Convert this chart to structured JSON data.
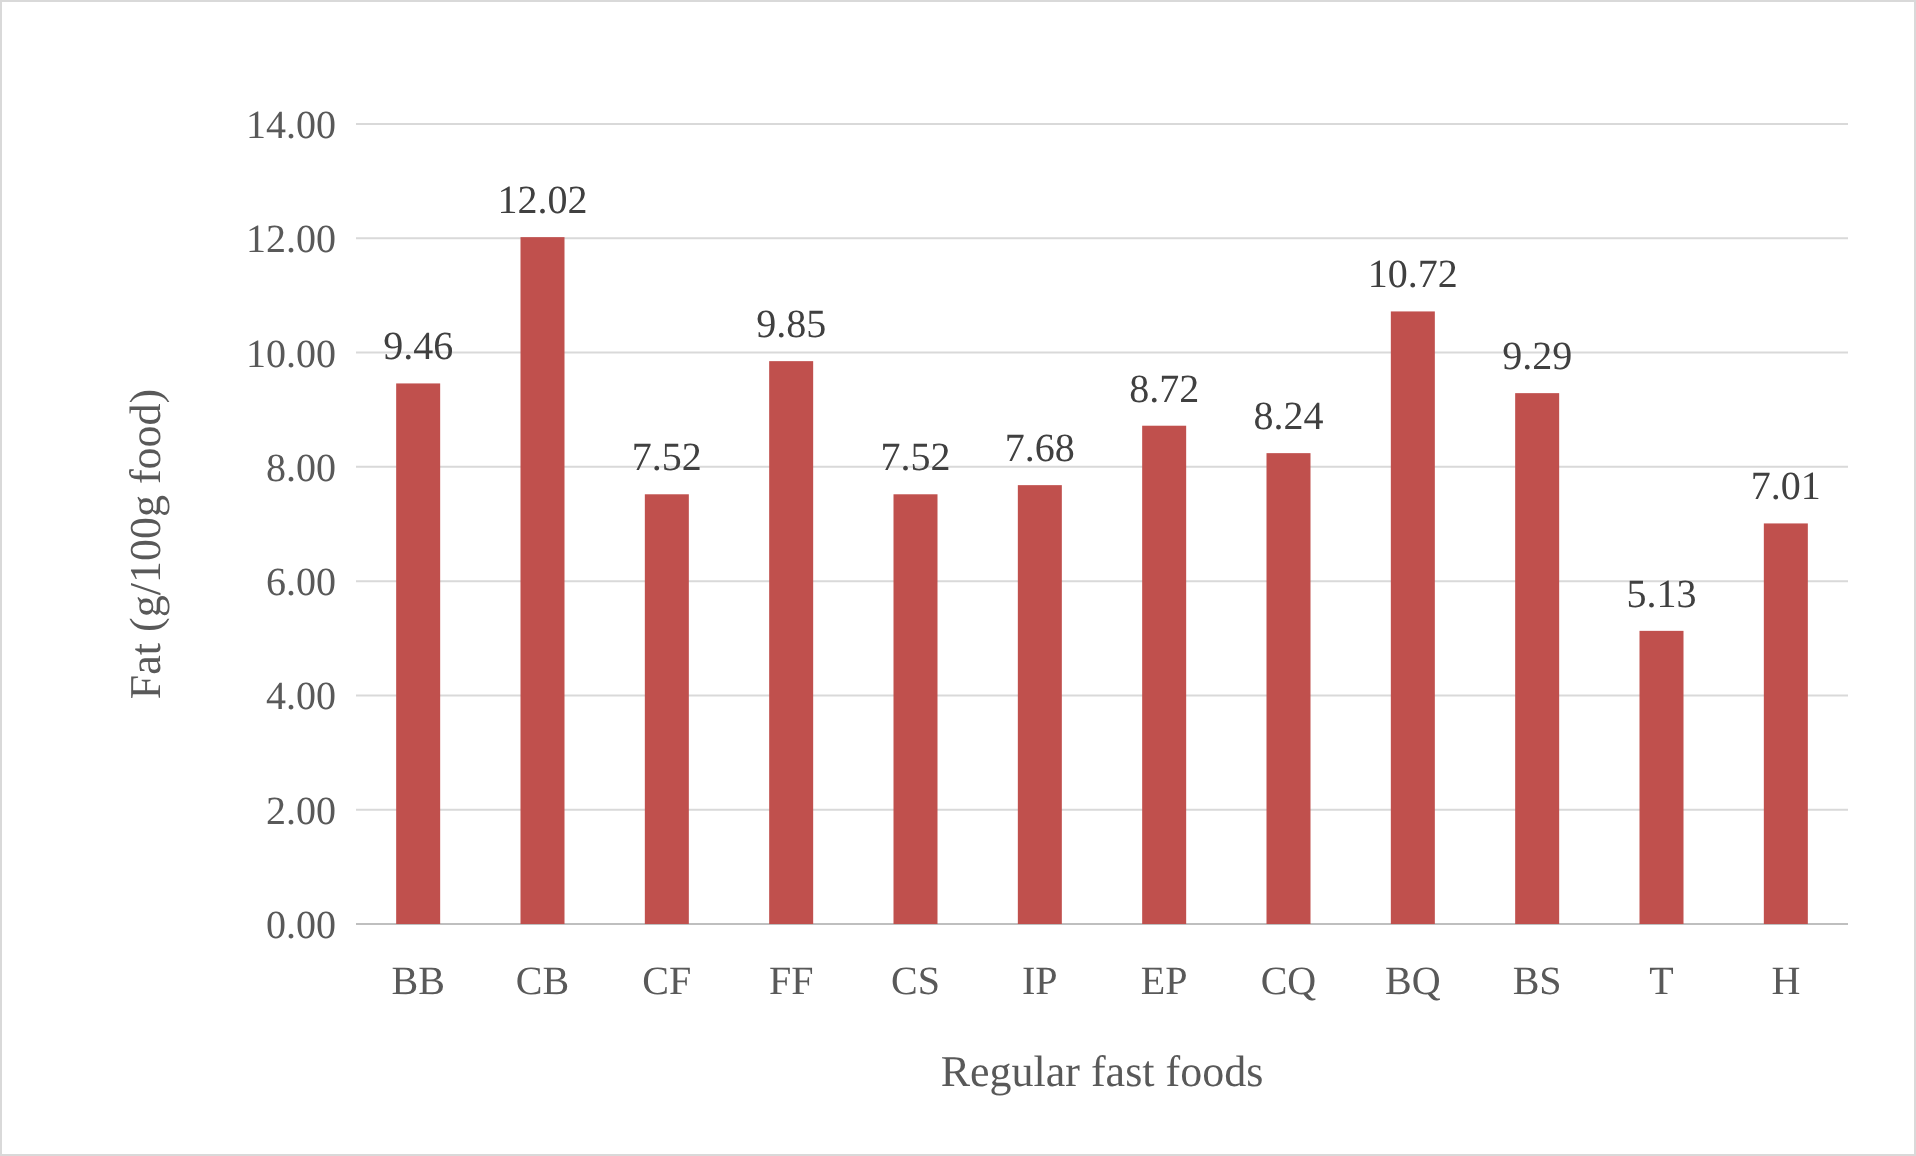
{
  "chart_data": {
    "type": "bar",
    "xlabel": "Regular fast foods",
    "ylabel": "Fat (g/100g food)",
    "categories": [
      "BB",
      "CB",
      "CF",
      "FF",
      "CS",
      "IP",
      "EP",
      "CQ",
      "BQ",
      "BS",
      "T",
      "H"
    ],
    "values": [
      9.46,
      12.02,
      7.52,
      9.85,
      7.52,
      7.68,
      8.72,
      8.24,
      10.72,
      9.29,
      5.13,
      7.01
    ],
    "color": "#c0504d",
    "data_labels": true,
    "grid": "y",
    "ylim": [
      0,
      14
    ],
    "yticks": [
      {
        "value": 0,
        "label": "0.00"
      },
      {
        "value": 2,
        "label": "2.00"
      },
      {
        "value": 4,
        "label": "4.00"
      },
      {
        "value": 6,
        "label": "6.00"
      },
      {
        "value": 8,
        "label": "8.00"
      },
      {
        "value": 10,
        "label": "10.00"
      },
      {
        "value": 12,
        "label": "12.00"
      },
      {
        "value": 14,
        "label": "14.00"
      }
    ]
  }
}
